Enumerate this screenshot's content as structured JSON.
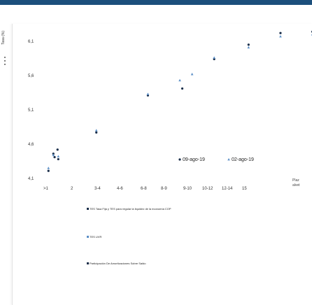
{
  "chart_data": {
    "type": "scatter",
    "ylabel": "Tasa (%)",
    "ylim": [
      3.9,
      6.45
    ],
    "yticks": [
      "6,1",
      "5,6",
      "5,1",
      "4,6",
      "4,1"
    ],
    "ytick_values": [
      6.1,
      5.6,
      5.1,
      4.6,
      4.1
    ],
    "categories": [
      ">1",
      "2",
      "3-4",
      "4-6",
      "6-8",
      "8-9",
      "9-10",
      "10-12",
      "12-14",
      "15"
    ],
    "x_right_label": "Plaz\nalvet",
    "series": [
      {
        "name": "09-ago-19",
        "marker": "circle",
        "color": "#1a2e4a",
        "points": [
          {
            "x": 0.15,
            "y": 4.21
          },
          {
            "x": 0.35,
            "y": 4.46
          },
          {
            "x": 0.52,
            "y": 4.52
          },
          {
            "x": 0.4,
            "y": 4.41
          },
          {
            "x": 0.55,
            "y": 4.38
          },
          {
            "x": 2.1,
            "y": 4.77
          },
          {
            "x": 4.2,
            "y": 5.31
          },
          {
            "x": 5.6,
            "y": 5.41
          },
          {
            "x": 6.9,
            "y": 5.84
          },
          {
            "x": 8.3,
            "y": 6.05
          },
          {
            "x": 9.6,
            "y": 6.22
          },
          {
            "x": 10.9,
            "y": 6.24
          }
        ]
      },
      {
        "name": "02-ago-19",
        "marker": "triangle",
        "color": "#5b8fc7",
        "points": [
          {
            "x": 0.15,
            "y": 4.25
          },
          {
            "x": 0.35,
            "y": 4.44
          },
          {
            "x": 0.55,
            "y": 4.42
          },
          {
            "x": 2.1,
            "y": 4.8
          },
          {
            "x": 4.2,
            "y": 5.33
          },
          {
            "x": 5.5,
            "y": 5.53
          },
          {
            "x": 6.0,
            "y": 5.62
          },
          {
            "x": 6.9,
            "y": 5.86
          },
          {
            "x": 8.3,
            "y": 6.01
          },
          {
            "x": 9.6,
            "y": 6.17
          },
          {
            "x": 10.9,
            "y": 6.2
          }
        ]
      }
    ],
    "legend_position": "right-middle",
    "grid": false
  },
  "legend_list": [
    {
      "label": "TES Tasa Fija y TES para regular la liquidez de la economía COP",
      "color": "#1a2e4a"
    },
    {
      "label": "TES UVR",
      "color": "#5b8fc7"
    },
    {
      "label": "Participación De Amortizaciones Sobre Saldo",
      "color": "#1a2e4a"
    }
  ]
}
